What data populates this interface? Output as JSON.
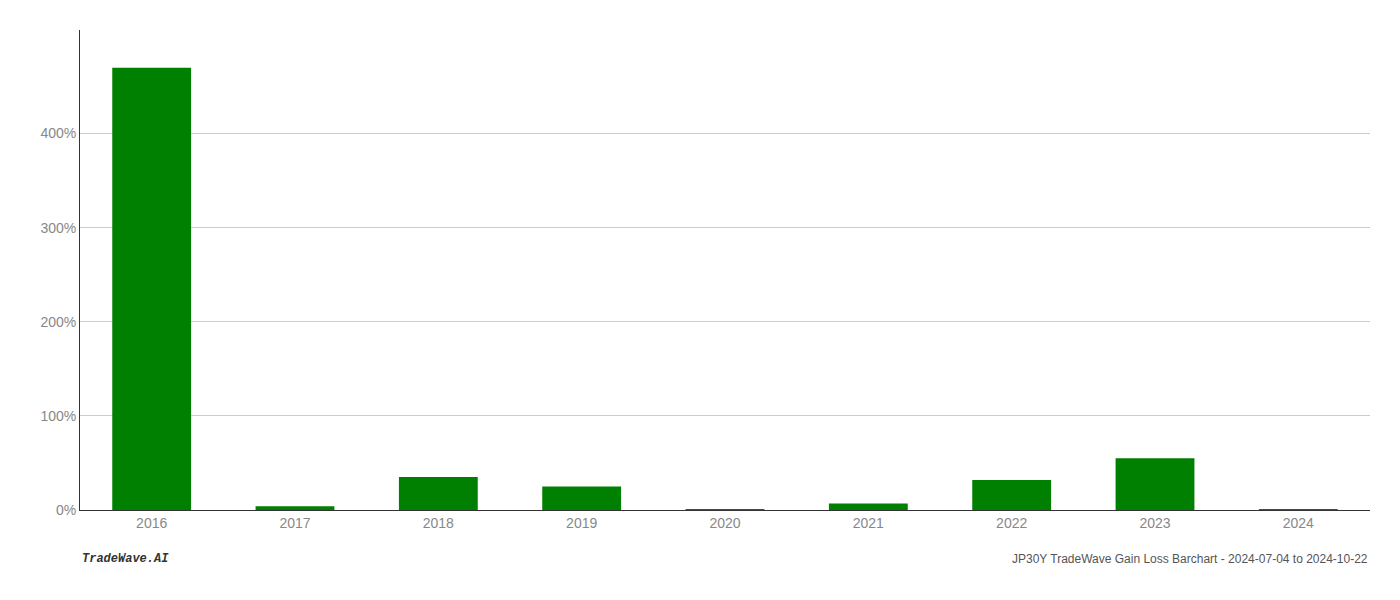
{
  "chart_data": {
    "type": "bar",
    "categories": [
      "2016",
      "2017",
      "2018",
      "2019",
      "2020",
      "2021",
      "2022",
      "2023",
      "2024"
    ],
    "values": [
      4.7,
      0.04,
      0.35,
      0.25,
      0.001,
      0.07,
      0.32,
      0.55,
      0.005
    ],
    "color": "#008000",
    "ylim": [
      0,
      5.1
    ],
    "yticks": [
      {
        "value": 0,
        "label": "0%"
      },
      {
        "value": 1.0,
        "label": "100%"
      },
      {
        "value": 2.0,
        "label": "200%"
      },
      {
        "value": 3.0,
        "label": "300%"
      },
      {
        "value": 4.0,
        "label": "400%"
      }
    ],
    "grid": true,
    "annotations": [
      "TradeWave.AI",
      "JP30Y TradeWave Gain Loss Barchart - 2024-07-04 to 2024-10-22"
    ]
  }
}
